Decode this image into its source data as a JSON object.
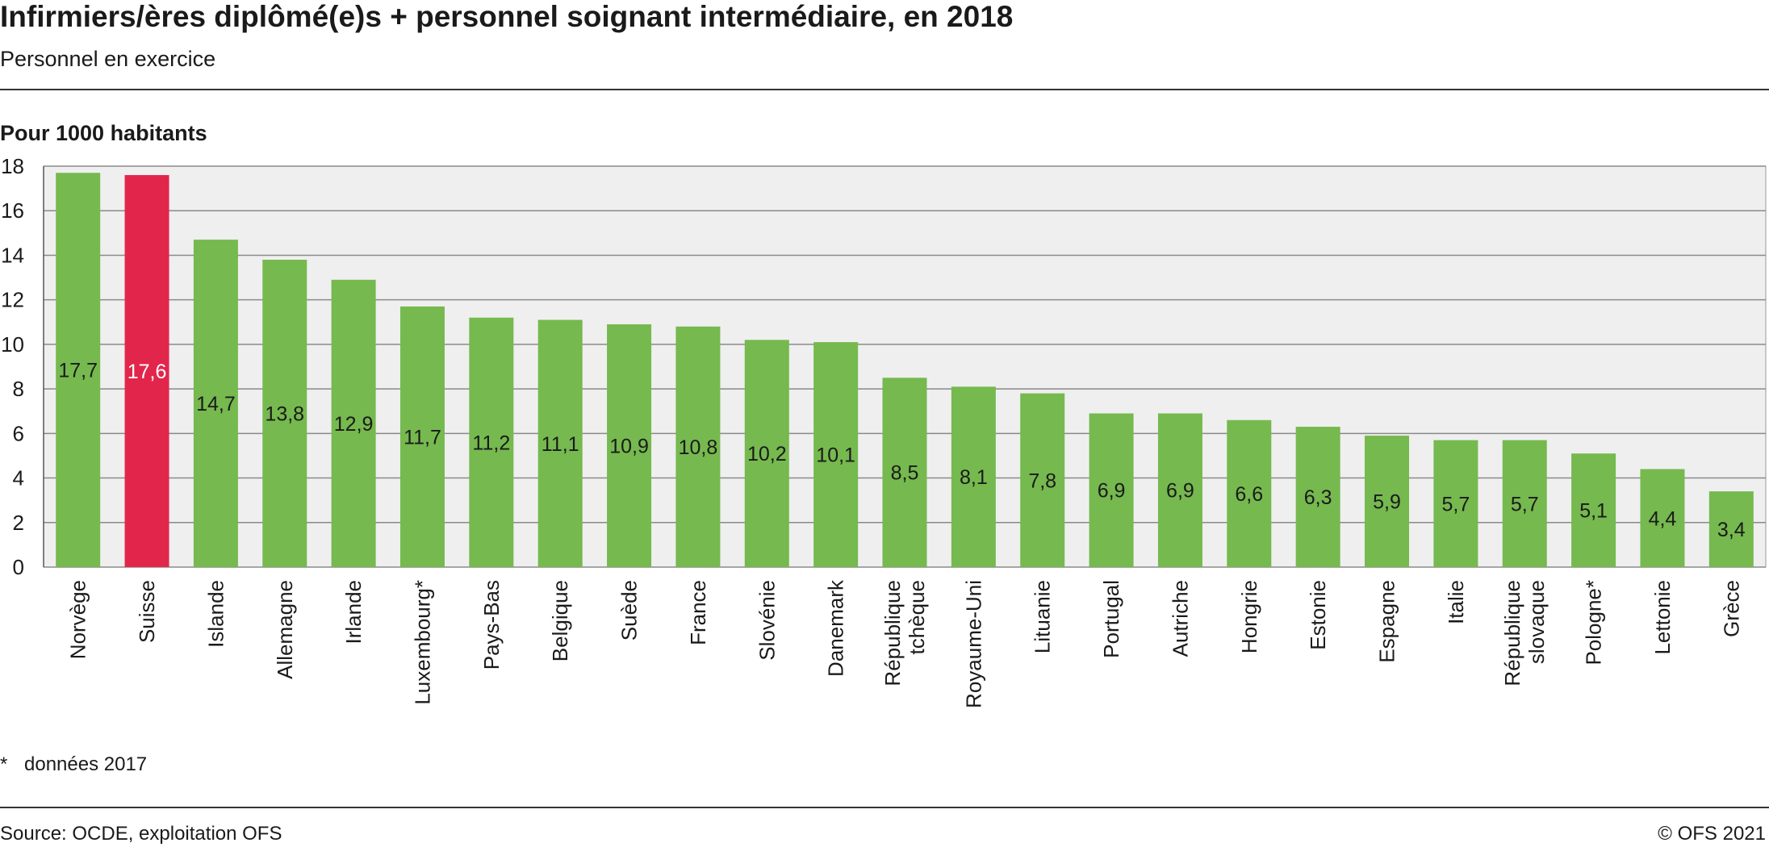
{
  "chart_data": {
    "type": "bar",
    "title": "Infirmiers/ères diplômé(e)s + personnel soignant intermédiaire, en 2018",
    "subtitle": "Personnel en exercice",
    "ylabel": "Pour 1000 habitants",
    "ylim": [
      0,
      18
    ],
    "yticks": [
      0,
      2,
      4,
      6,
      8,
      10,
      12,
      14,
      16,
      18
    ],
    "grid": true,
    "categories": [
      "Norvège",
      "Suisse",
      "Islande",
      "Allemagne",
      "Irlande",
      "Luxembourg*",
      "Pays-Bas",
      "Belgique",
      "Suède",
      "France",
      "Slovénie",
      "Danemark",
      "République tchèque",
      "Royaume-Uni",
      "Lituanie",
      "Portugal",
      "Autriche",
      "Hongrie",
      "Estonie",
      "Espagne",
      "Italie",
      "République slovaque",
      "Pologne*",
      "Lettonie",
      "Grèce"
    ],
    "values": [
      17.7,
      17.6,
      14.7,
      13.8,
      12.9,
      11.7,
      11.2,
      11.1,
      10.9,
      10.8,
      10.2,
      10.1,
      8.5,
      8.1,
      7.8,
      6.9,
      6.9,
      6.6,
      6.3,
      5.9,
      5.7,
      5.7,
      5.1,
      4.4,
      3.4
    ],
    "value_labels": [
      "17,7",
      "17,6",
      "14,7",
      "13,8",
      "12,9",
      "11,7",
      "11,2",
      "11,1",
      "10,9",
      "10,8",
      "10,2",
      "10,1",
      "8,5",
      "8,1",
      "7,8",
      "6,9",
      "6,9",
      "6,6",
      "6,3",
      "5,9",
      "5,7",
      "5,7",
      "5,1",
      "4,4",
      "3,4"
    ],
    "highlight": "Suisse",
    "colors": {
      "bar": "#76b94f",
      "highlight": "#e2264b",
      "plot_bg": "#efefef",
      "grid": "#8a8a8a"
    }
  },
  "footnote": {
    "symbol": "*",
    "text": "données 2017"
  },
  "source": "Source: OCDE, exploitation OFS",
  "copyright": "© OFS 2021"
}
